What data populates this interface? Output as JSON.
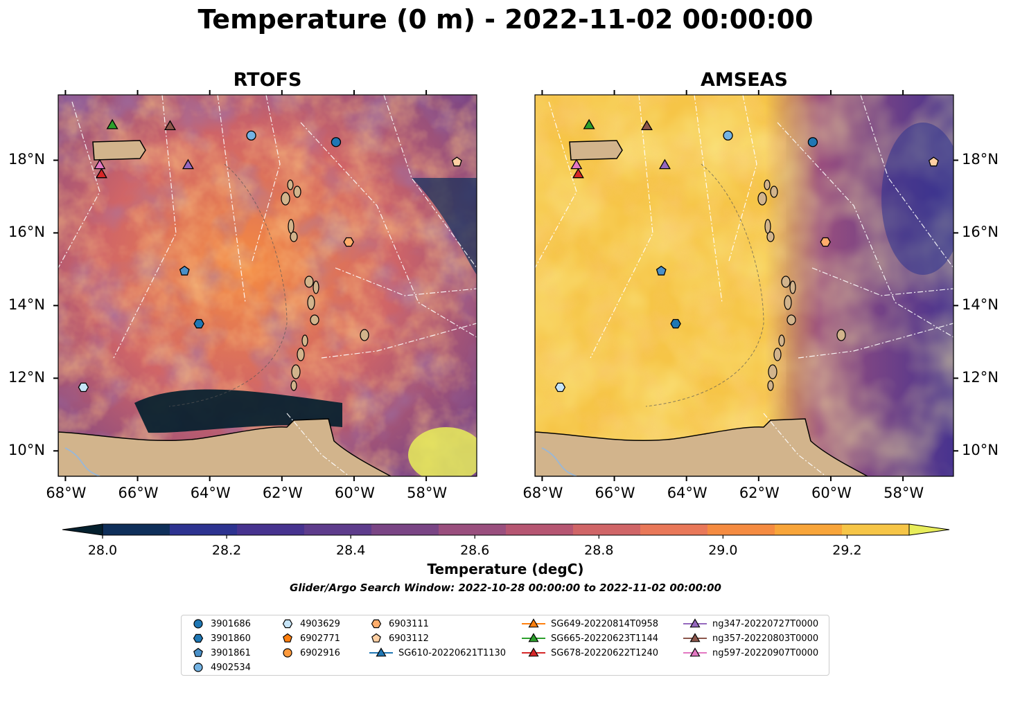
{
  "suptitle": "Temperature (0 m) - 2022-11-02 00:00:00",
  "panels": [
    {
      "title": "RTOFS"
    },
    {
      "title": "AMSEAS"
    }
  ],
  "axes": {
    "lon_ticks": [
      "68°W",
      "66°W",
      "64°W",
      "62°W",
      "60°W",
      "58°W"
    ],
    "lat_ticks": [
      "18°N",
      "16°N",
      "14°N",
      "12°N",
      "10°N"
    ]
  },
  "colorbar": {
    "label": "Temperature (degC)",
    "tick_labels": [
      "28.0",
      "28.2",
      "28.4",
      "28.6",
      "28.8",
      "29.0",
      "29.2"
    ],
    "min": 28.0,
    "max": 29.3,
    "step": 0.1,
    "extend": "both",
    "colormap": "thermal",
    "colors": [
      "#04202e",
      "#0f2f5a",
      "#2d3390",
      "#47338f",
      "#5e3c8c",
      "#7a4585",
      "#9a4f7e",
      "#b65672",
      "#d06567",
      "#e97859",
      "#f58b41",
      "#f8a53a",
      "#f6c547",
      "#e8ed5b"
    ]
  },
  "search_window": "Glider/Argo Search Window: 2022-10-28 00:00:00 to 2022-11-02 00:00:00",
  "legend": {
    "items": [
      {
        "label": "3901686",
        "marker": "circle",
        "color": "#1f77b4"
      },
      {
        "label": "3901860",
        "marker": "hexagon",
        "color": "#1f77b4"
      },
      {
        "label": "3901861",
        "marker": "pentagon",
        "color": "#4a90c8"
      },
      {
        "label": "4902534",
        "marker": "circle",
        "color": "#74b3e3"
      },
      {
        "label": "4903629",
        "marker": "hexagon",
        "color": "#c6e4f7"
      },
      {
        "label": "6902771",
        "marker": "pentagon",
        "color": "#ff7f0e"
      },
      {
        "label": "6902916",
        "marker": "circle",
        "color": "#ff9a3c"
      },
      {
        "label": "6903111",
        "marker": "hexagon",
        "color": "#ffad6b"
      },
      {
        "label": "6903112",
        "marker": "pentagon",
        "color": "#ffd0a3"
      },
      {
        "label": "SG610-20220621T1130",
        "marker": "triangle-line",
        "color": "#1f77b4"
      },
      {
        "label": "SG649-20220814T0958",
        "marker": "triangle-line",
        "color": "#ff7f0e"
      },
      {
        "label": "SG665-20220623T1144",
        "marker": "triangle-line",
        "color": "#2ca02c"
      },
      {
        "label": "SG678-20220622T1240",
        "marker": "triangle-line",
        "color": "#d62728"
      },
      {
        "label": "ng347-20220727T0000",
        "marker": "triangle-line",
        "color": "#9467bd"
      },
      {
        "label": "ng357-20220803T0000",
        "marker": "triangle-line",
        "color": "#8c564b"
      },
      {
        "label": "ng597-20220907T0000",
        "marker": "triangle-line",
        "color": "#e377c2"
      }
    ]
  },
  "map_features": {
    "land_color": "#d2b48c",
    "extent": {
      "lon_min": -68.2,
      "lon_max": -56.6,
      "lat_min": 9.3,
      "lat_max": 19.8
    },
    "markers": [
      {
        "id": "3901686",
        "lon": -60.5,
        "lat": 18.5
      },
      {
        "id": "3901860",
        "lon": -64.3,
        "lat": 13.5
      },
      {
        "id": "3901861",
        "lon": -64.7,
        "lat": 14.95
      },
      {
        "id": "4902534",
        "lon": -62.85,
        "lat": 18.68
      },
      {
        "id": "4903629",
        "lon": -67.5,
        "lat": 11.75
      },
      {
        "id": "6903111",
        "lon": -60.15,
        "lat": 15.75
      },
      {
        "id": "6903112",
        "lon": -57.15,
        "lat": 17.95
      },
      {
        "id": "SG665-20220623T1144",
        "lon": -66.7,
        "lat": 18.95
      },
      {
        "id": "ng357-20220803T0000",
        "lon": -65.1,
        "lat": 18.92
      },
      {
        "id": "ng347-20220727T0000",
        "lon": -64.6,
        "lat": 17.85
      },
      {
        "id": "ng597-20220907T0000",
        "lon": -67.05,
        "lat": 17.85
      },
      {
        "id": "SG678-20220622T1240",
        "lon": -67.0,
        "lat": 17.6
      }
    ]
  }
}
